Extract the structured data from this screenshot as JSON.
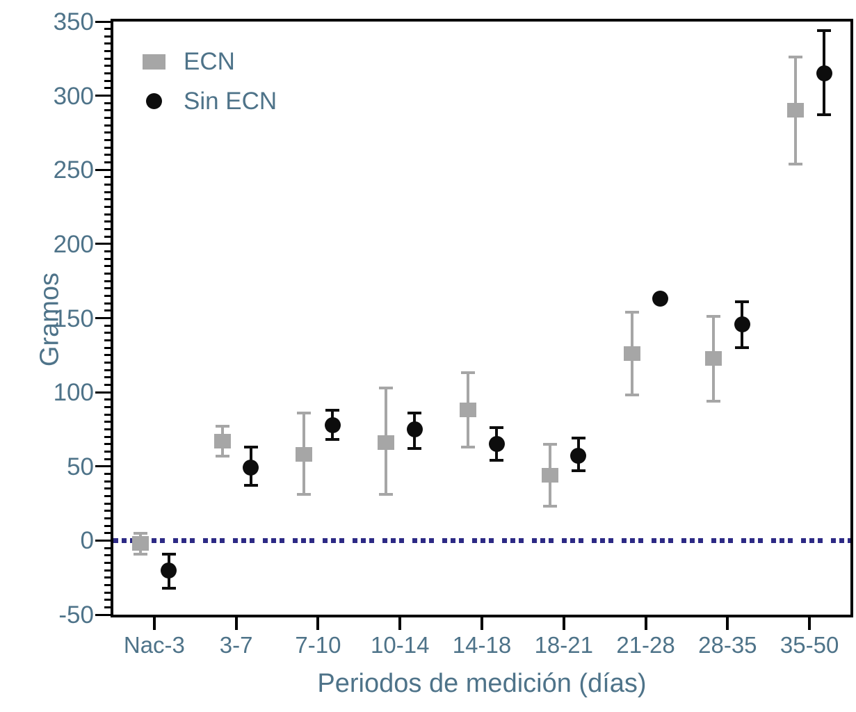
{
  "figure": {
    "background": "#ffffff",
    "text_color": "#4e7389",
    "axis_color": "#000000"
  },
  "chart_data": {
    "type": "scatter",
    "title": "",
    "xlabel": "Periodos de medición (días)",
    "ylabel": "Gramos",
    "categories": [
      "Nac-3",
      "3-7",
      "7-10",
      "10-14",
      "14-18",
      "18-21",
      "21-28",
      "28-35",
      "35-50"
    ],
    "ylim": [
      -50,
      350
    ],
    "ytick_major_step": 50,
    "ytick_minor_step": 5,
    "ytick_labels": [
      "350",
      "300",
      "250",
      "200",
      "150",
      "100",
      "50",
      "0",
      "-50"
    ],
    "grid": false,
    "legend_position": "top-left",
    "zero_line": {
      "value": 0,
      "style": "dotted",
      "color": "#2d2a85"
    },
    "series": [
      {
        "name": "ECN",
        "marker": "square",
        "color": "#a6a6a6",
        "values": [
          -2,
          67,
          58,
          66,
          88,
          44,
          126,
          123,
          290
        ],
        "err_low": [
          -9,
          57,
          31,
          31,
          63,
          23,
          98,
          94,
          254
        ],
        "err_high": [
          5,
          77,
          86,
          103,
          113,
          65,
          154,
          151,
          326
        ]
      },
      {
        "name": "Sin ECN",
        "marker": "circle",
        "color": "#0d0d0d",
        "values": [
          -20,
          49,
          78,
          75,
          65,
          57,
          163,
          146,
          315
        ],
        "err_low": [
          -32,
          37,
          68,
          62,
          54,
          47,
          null,
          130,
          287
        ],
        "err_high": [
          -9,
          63,
          88,
          86,
          76,
          69,
          null,
          161,
          344
        ]
      }
    ]
  }
}
